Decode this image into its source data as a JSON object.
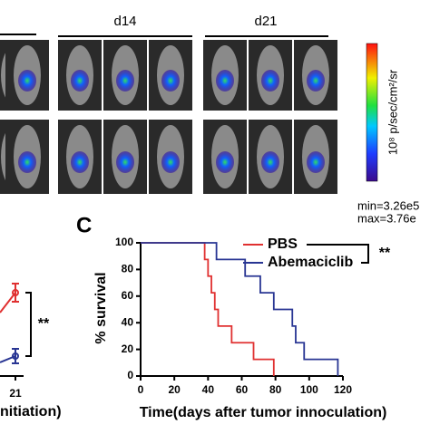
{
  "figure": {
    "images": {
      "group_labels": [
        "d14",
        "d21"
      ]
    },
    "colorbar": {
      "unit": "10⁸ p/sec/cm²/sr",
      "min": "min=3.26e5",
      "max": "max=3.76e"
    },
    "panel_b": {
      "tick": "21",
      "x_label": "nitiation)",
      "significance": "**"
    }
  },
  "chart_data": {
    "type": "step",
    "panel": "C",
    "x_label": "Time(days after tumor innoculation)",
    "y_label": "% survival",
    "xlim": [
      0,
      120
    ],
    "xticks": [
      0,
      20,
      40,
      60,
      80,
      100,
      120
    ],
    "ylim": [
      0,
      100
    ],
    "yticks": [
      0,
      20,
      40,
      60,
      80,
      100
    ],
    "significance": "**",
    "series": [
      {
        "name": "PBS",
        "color": "#e03030",
        "x": [
          0,
          38,
          40,
          42,
          44,
          46,
          54,
          67,
          79
        ],
        "values": [
          100,
          87.5,
          75,
          62.5,
          50,
          37.5,
          25,
          12.5,
          0
        ]
      },
      {
        "name": "Abemaciclib",
        "color": "#283593",
        "x": [
          0,
          45,
          62,
          71,
          79,
          90,
          92,
          97,
          117
        ],
        "values": [
          100,
          87.5,
          75,
          62.5,
          50,
          37.5,
          25,
          12.5,
          0
        ]
      }
    ]
  }
}
